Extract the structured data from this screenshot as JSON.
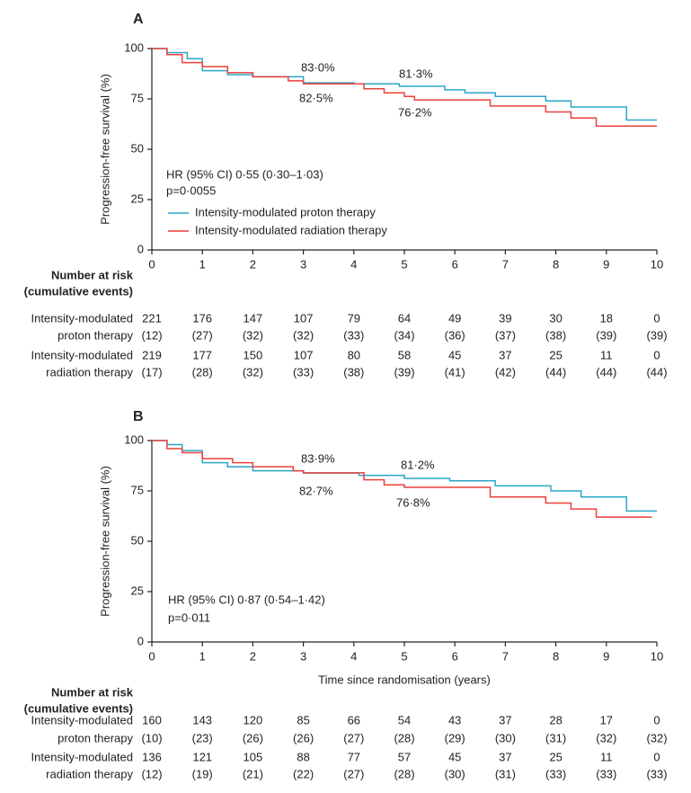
{
  "chart_data": [
    {
      "type": "line",
      "step": true,
      "panel_label": "A",
      "ylabel": "Progression-free survival (%)",
      "xlim": [
        0,
        10
      ],
      "ylim": [
        0,
        100
      ],
      "xticks": [
        0,
        1,
        2,
        3,
        4,
        5,
        6,
        7,
        8,
        9,
        10
      ],
      "yticks": [
        0,
        25,
        50,
        75,
        100
      ],
      "annotations": [
        "83·0%",
        "81·3%",
        "82·5%",
        "76·2%"
      ],
      "hr_text": "HR (95% CI) 0·55 (0·30–1·03)",
      "p_text": "p=0·0055",
      "series": [
        {
          "name": "Intensity-modulated proton therapy",
          "color": "#2aa7c9",
          "x": [
            0,
            0.3,
            0.7,
            1,
            1.5,
            2,
            3,
            4,
            4.9,
            5.8,
            6.2,
            6.8,
            7.8,
            8.3,
            9.4,
            10
          ],
          "values": [
            100,
            98,
            95,
            89,
            87,
            86,
            83,
            82.5,
            81.3,
            79.5,
            78,
            76.2,
            74,
            71,
            64.5,
            64.5
          ]
        },
        {
          "name": "Intensity-modulated radiation therapy",
          "color": "#e8413c",
          "x": [
            0,
            0.3,
            0.6,
            1,
            1.5,
            2,
            2.7,
            3,
            4.2,
            4.6,
            5,
            5.2,
            6.7,
            7.8,
            8.3,
            8.8,
            10
          ],
          "values": [
            100,
            97,
            93,
            91,
            88,
            86,
            84,
            82.5,
            80,
            78,
            76.2,
            74.5,
            71.5,
            68.5,
            65.5,
            61.5,
            61.5
          ]
        }
      ],
      "risk_table": {
        "title_lines": [
          "Number at risk",
          "(cumulative events)"
        ],
        "rows": [
          {
            "label_lines": [
              "Intensity-modulated",
              "proton therapy"
            ],
            "at_risk": [
              221,
              176,
              147,
              107,
              79,
              64,
              49,
              39,
              30,
              18,
              0
            ],
            "events": {
              "values": [
                12,
                27,
                32,
                32,
                33,
                34,
                36,
                37,
                38,
                39,
                39
              ],
              "value_labels": [
                "(12)",
                "(27)",
                "(32)",
                "(32)",
                "(33)",
                "(34)",
                "(36)",
                "(37)",
                "(38)",
                "(39)",
                "(39)"
              ]
            }
          },
          {
            "label_lines": [
              "Intensity-modulated",
              "radiation therapy"
            ],
            "at_risk": [
              219,
              177,
              150,
              107,
              80,
              58,
              45,
              37,
              25,
              11,
              0
            ],
            "events": {
              "values": [
                17,
                28,
                32,
                33,
                38,
                39,
                41,
                42,
                44,
                44,
                44
              ],
              "value_labels": [
                "(17)",
                "(28)",
                "(32)",
                "(33)",
                "(38)",
                "(39)",
                "(41)",
                "(42)",
                "(44)",
                "(44)",
                "(44)"
              ]
            }
          }
        ]
      }
    },
    {
      "type": "line",
      "step": true,
      "panel_label": "B",
      "ylabel": "Progression-free survival (%)",
      "xlabel": "Time since randomisation (years)",
      "xlim": [
        0,
        10
      ],
      "ylim": [
        0,
        100
      ],
      "xticks": [
        0,
        1,
        2,
        3,
        4,
        5,
        6,
        7,
        8,
        9,
        10
      ],
      "yticks": [
        0,
        25,
        50,
        75,
        100
      ],
      "annotations": [
        "83·9%",
        "81·2%",
        "82·7%",
        "76·8%"
      ],
      "hr_text": "HR (95% CI) 0·87 (0·54–1·42)",
      "p_text": "p=0·011",
      "series": [
        {
          "color": "#2aa7c9",
          "x": [
            0,
            0.3,
            0.6,
            1,
            1.5,
            2,
            3,
            4.1,
            5,
            5.9,
            6.8,
            7.9,
            8.5,
            9.4,
            10
          ],
          "values": [
            100,
            98,
            95,
            89,
            87,
            85,
            83.9,
            82.7,
            81.2,
            80,
            77.5,
            75,
            72,
            65,
            65
          ]
        },
        {
          "color": "#e8413c",
          "x": [
            0,
            0.3,
            0.6,
            1,
            1.6,
            2,
            2.8,
            3,
            4.2,
            4.6,
            5,
            6.7,
            7.8,
            8.3,
            8.8,
            9.9
          ],
          "values": [
            100,
            96,
            94,
            91,
            89,
            87,
            85,
            84,
            80.5,
            78,
            76.8,
            72,
            69,
            66,
            62,
            62
          ]
        }
      ],
      "risk_table": {
        "title_lines": [
          "Number at risk",
          "(cumulative events)"
        ],
        "rows": [
          {
            "label_lines": [
              "Intensity-modulated",
              "proton therapy"
            ],
            "at_risk": [
              160,
              143,
              120,
              85,
              66,
              54,
              43,
              37,
              28,
              17,
              0
            ],
            "events": {
              "values": [
                10,
                23,
                26,
                26,
                27,
                28,
                29,
                30,
                31,
                32,
                32
              ],
              "value_labels": [
                "(10)",
                "(23)",
                "(26)",
                "(26)",
                "(27)",
                "(28)",
                "(29)",
                "(30)",
                "(31)",
                "(32)",
                "(32)"
              ]
            }
          },
          {
            "label_lines": [
              "Intensity-modulated",
              "radiation therapy"
            ],
            "at_risk": [
              136,
              121,
              105,
              88,
              77,
              57,
              45,
              37,
              25,
              11,
              0
            ],
            "events": {
              "values": [
                12,
                19,
                21,
                22,
                27,
                28,
                30,
                31,
                33,
                33,
                33
              ],
              "value_labels": [
                "(12)",
                "(19)",
                "(21)",
                "(22)",
                "(27)",
                "(28)",
                "(30)",
                "(31)",
                "(33)",
                "(33)",
                "(33)"
              ]
            }
          }
        ]
      }
    }
  ]
}
